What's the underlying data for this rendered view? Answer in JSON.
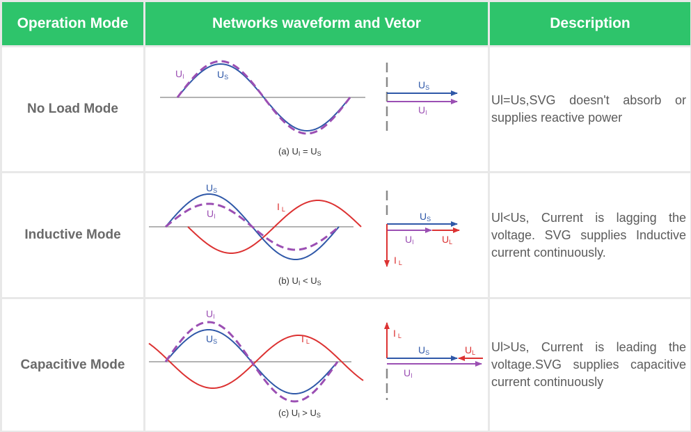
{
  "header": {
    "col1": "Operation Mode",
    "col2": "Networks waveform and Vetor",
    "col3": "Description"
  },
  "colors": {
    "header_green": "#2ec46b",
    "us_blue": "#2f58a8",
    "ul_purple": "#9b4fb3",
    "il_red": "#dc3232"
  },
  "rows": [
    {
      "mode": "No Load  Mode",
      "description": "Ul=Us,SVG doesn't absorb or supplies reactive power",
      "caption_prefix": "(a)  U",
      "caption_sub1": "I",
      "caption_op": " = U",
      "caption_sub2": "S",
      "wave_labels": {
        "ul": "U",
        "ul_sub": "I",
        "us": "U",
        "us_sub": "S"
      }
    },
    {
      "mode": "Inductive  Mode",
      "description": "Ul<Us, Current is lagging the voltage. SVG supplies Inductive current continuously.",
      "caption_prefix": "(b)  U",
      "caption_sub1": "I",
      "caption_op": " < U",
      "caption_sub2": "S",
      "wave_labels": {
        "ul": "U",
        "ul_sub": "I",
        "us": "U",
        "us_sub": "S",
        "il": "I",
        "il_sub": "L"
      }
    },
    {
      "mode": "Capacitive  Mode",
      "description": "Ul>Us, Current is leading the voltage.SVG supplies capacitive current continuously",
      "caption_prefix": "(c)  U",
      "caption_sub1": "I",
      "caption_op": " > U",
      "caption_sub2": "S",
      "wave_labels": {
        "ul": "U",
        "ul_sub": "I",
        "us": "U",
        "us_sub": "S",
        "il": "I",
        "il_sub": "L"
      }
    }
  ],
  "vector_labels": {
    "us": "U",
    "us_sub": "S",
    "ul": "U",
    "ul_sub": "I",
    "ulL": "U",
    "ulL_sub": "L",
    "il": "I",
    "il_sub": "L"
  }
}
